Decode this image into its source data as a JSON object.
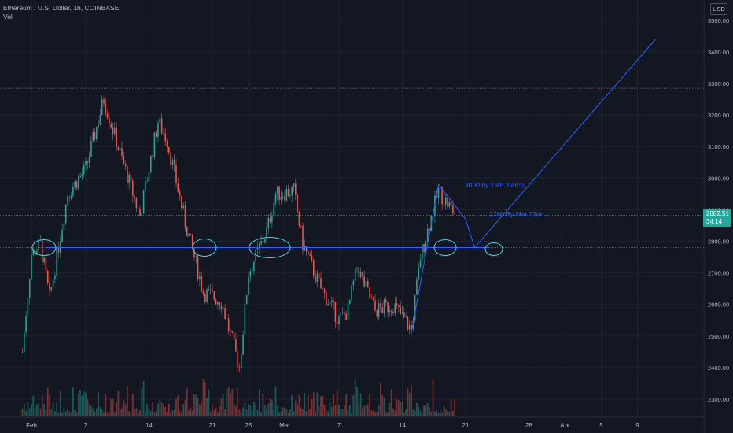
{
  "legend": {
    "symbol": "Ethereum / U.S. Dollar, 1h, COINBASE",
    "volume_label": "Vol"
  },
  "price_axis": {
    "currency": "USD",
    "ticks": [
      "3500.00",
      "3400.00",
      "3300.00",
      "3200.00",
      "3100.00",
      "3000.00",
      "2900.00",
      "2800.00",
      "2700.00",
      "2600.00",
      "2500.00",
      "2400.00",
      "2300.00"
    ]
  },
  "time_axis": {
    "ticks": [
      "Feb",
      "7",
      "14",
      "21",
      "25",
      "Mar",
      "7",
      "14",
      "21",
      "28",
      "Apr",
      "5",
      "9"
    ]
  },
  "last_price": {
    "value": "2882.51",
    "countdown": "34:14"
  },
  "annotations": {
    "target_high": "3000 by 19th march",
    "target_low": "2780 By Mar 22nd"
  },
  "colors": {
    "background": "#131722",
    "up": "#26a69a",
    "down": "#ef5350",
    "drawing": "#2962ff",
    "ellipse": "#4dd0e1",
    "grid": "#1e222d"
  },
  "chart_data": {
    "type": "candlestick",
    "title": "Ethereum / U.S. Dollar, 1h, COINBASE",
    "ylim": [
      2290,
      3560
    ],
    "support_level": 2780,
    "projection_path": [
      {
        "x": "Mar 15",
        "y": 2510
      },
      {
        "x": "Mar 18",
        "y": 2980
      },
      {
        "x": "Mar 21",
        "y": 2870
      },
      {
        "x": "Mar 22",
        "y": 2780
      },
      {
        "x": "Apr 11",
        "y": 3440
      }
    ],
    "price_path": [
      {
        "x": "Jan 31",
        "y": 2450
      },
      {
        "x": "Feb 1",
        "y": 2760
      },
      {
        "x": "Feb 2",
        "y": 2790
      },
      {
        "x": "Feb 3",
        "y": 2620
      },
      {
        "x": "Feb 5",
        "y": 2950
      },
      {
        "x": "Feb 7",
        "y": 3030
      },
      {
        "x": "Feb 9",
        "y": 3250
      },
      {
        "x": "Feb 11",
        "y": 3060
      },
      {
        "x": "Feb 13",
        "y": 2880
      },
      {
        "x": "Feb 15",
        "y": 3180
      },
      {
        "x": "Feb 16",
        "y": 3120
      },
      {
        "x": "Feb 18",
        "y": 2860
      },
      {
        "x": "Feb 20",
        "y": 2640
      },
      {
        "x": "Feb 22",
        "y": 2610
      },
      {
        "x": "Feb 24",
        "y": 2400
      },
      {
        "x": "Feb 25",
        "y": 2700
      },
      {
        "x": "Feb 27",
        "y": 2830
      },
      {
        "x": "Feb 28",
        "y": 2950
      },
      {
        "x": "Mar 2",
        "y": 2960
      },
      {
        "x": "Mar 3",
        "y": 2790
      },
      {
        "x": "Mar 5",
        "y": 2650
      },
      {
        "x": "Mar 7",
        "y": 2550
      },
      {
        "x": "Mar 8",
        "y": 2580
      },
      {
        "x": "Mar 9",
        "y": 2720
      },
      {
        "x": "Mar 11",
        "y": 2580
      },
      {
        "x": "Mar 13",
        "y": 2600
      },
      {
        "x": "Mar 15",
        "y": 2520
      },
      {
        "x": "Mar 16",
        "y": 2750
      },
      {
        "x": "Mar 18",
        "y": 2960
      },
      {
        "x": "Mar 20",
        "y": 2880
      }
    ],
    "volume_scale": "relative"
  }
}
